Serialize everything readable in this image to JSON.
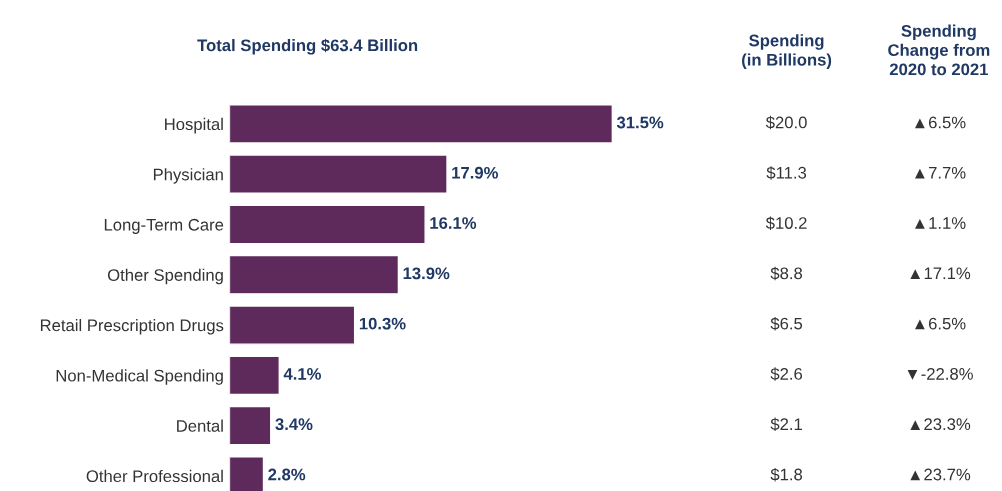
{
  "chart_data": {
    "type": "bar",
    "orientation": "horizontal",
    "title": "Total Spending $63.4 Billion",
    "categories": [
      "Hospital",
      "Physician",
      "Long-Term Care",
      "Other Spending",
      "Retail Prescription Drugs",
      "Non-Medical Spending",
      "Dental",
      "Other Professional"
    ],
    "values": [
      31.5,
      17.9,
      16.1,
      13.9,
      10.3,
      4.1,
      3.4,
      2.8
    ],
    "value_labels": [
      "31.5%",
      "17.9%",
      "16.1%",
      "13.9%",
      "10.3%",
      "4.1%",
      "3.4%",
      "2.8%"
    ],
    "color": "#5e2a5b",
    "annotations": [
      "Spending\n(in Billions)",
      "Spending\nChange from\n2020 to 2021",
      "$20.0",
      "▲6.5%",
      "$11.3",
      "▲7.7%",
      "$10.2",
      "▲1.1%",
      "$8.8",
      "▲17.1%",
      "$6.5",
      "▲6.5%",
      "$2.6",
      "▼-22.8%",
      "$2.1",
      "▲23.3%",
      "$1.8",
      "▲23.7%"
    ],
    "grid": false,
    "legend": false
  }
}
